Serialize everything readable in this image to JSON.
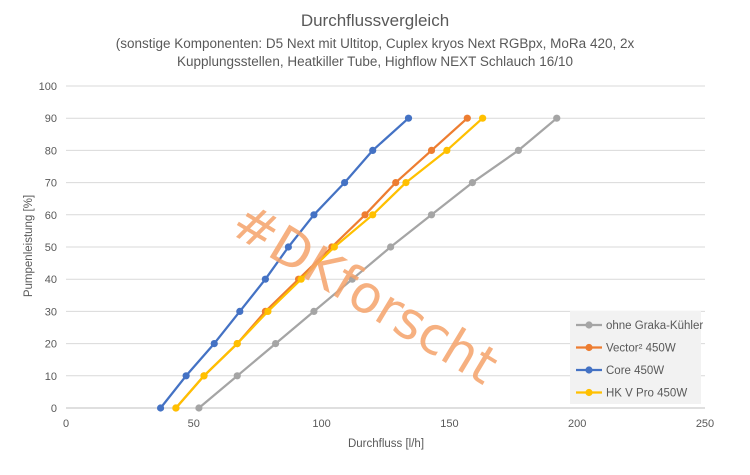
{
  "chart_data": {
    "type": "line",
    "title": "Durchflussvergleich",
    "subtitle_lines": [
      "(sonstige Komponenten:  D5 Next mit Ultitop,  Cuplex kryos Next RGBpx, MoRa 420,  2x",
      "Kupplungsstellen, Heatkiller Tube, Highflow NEXT Schlauch 16/10"
    ],
    "xlabel": "Durchfluss [l/h]",
    "ylabel": "Pumpenleistung [%]",
    "xlim": [
      0,
      250
    ],
    "ylim": [
      0,
      100
    ],
    "xticks": [
      0,
      50,
      100,
      150,
      200,
      250
    ],
    "yticks": [
      0,
      10,
      20,
      30,
      40,
      50,
      60,
      70,
      80,
      90,
      100
    ],
    "grid": "horizontal",
    "legend_position": "bottom-right",
    "series": [
      {
        "name": "ohne Graka-Kühler",
        "color": "#a5a5a5",
        "x": [
          52,
          67,
          82,
          97,
          112,
          127,
          143,
          159,
          177,
          192
        ],
        "y": [
          0,
          10,
          20,
          30,
          40,
          50,
          60,
          70,
          80,
          90
        ]
      },
      {
        "name": "Vector² 450W",
        "color": "#ed7d31",
        "x": [
          43,
          54,
          67,
          78,
          91,
          104,
          117,
          129,
          143,
          157
        ],
        "y": [
          0,
          10,
          20,
          30,
          40,
          50,
          60,
          70,
          80,
          90
        ]
      },
      {
        "name": "Core 450W",
        "color": "#4472c4",
        "x": [
          37,
          47,
          58,
          68,
          78,
          87,
          97,
          109,
          120,
          134
        ],
        "y": [
          0,
          10,
          20,
          30,
          40,
          50,
          60,
          70,
          80,
          90
        ]
      },
      {
        "name": "HK V Pro 450W",
        "color": "#ffc000",
        "x": [
          43,
          54,
          67,
          79,
          92,
          105,
          120,
          133,
          149,
          163
        ],
        "y": [
          0,
          10,
          20,
          30,
          40,
          50,
          60,
          70,
          80,
          90
        ]
      }
    ],
    "watermark": {
      "text": "#DKforscht",
      "color": "#f4a26a"
    }
  }
}
